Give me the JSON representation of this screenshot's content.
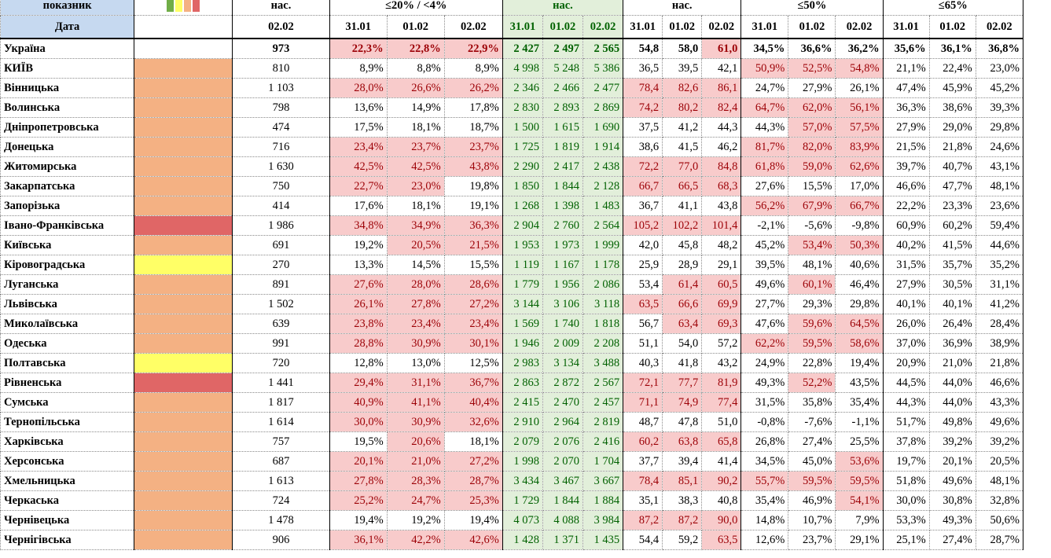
{
  "header": {
    "group_row": [
      "показник",
      "нас.",
      "≤20% / <4%",
      "нас.",
      "нас.",
      "≤50%",
      "≤65%"
    ],
    "date_label": "Дата",
    "population_date": "02.02",
    "dates": [
      "31.01",
      "01.02",
      "02.02",
      "31.01",
      "01.02",
      "02.02",
      "31.01",
      "01.02",
      "02.02",
      "31.01",
      "01.02",
      "02.02",
      "31.01",
      "01.02",
      "02.02"
    ],
    "legend_colors": [
      "#70ad47",
      "#ffff66",
      "#f4b183",
      "#e06666"
    ]
  },
  "rows": [
    {
      "name": "Україна",
      "population": "973",
      "values": [
        "22,3%",
        "22,8%",
        "22,9%",
        "2 427",
        "2 497",
        "2 565",
        "54,8",
        "58,0",
        "61,0",
        "34,5%",
        "36,6%",
        "36,2%",
        "35,6%",
        "36,1%",
        "36,8%"
      ],
      "highlighted": [
        0,
        1,
        2,
        8
      ]
    },
    {
      "name": "КИЇВ",
      "status_color": "#f4b183",
      "population": "810",
      "values": [
        "8,9%",
        "8,8%",
        "8,9%",
        "4 998",
        "5 248",
        "5 386",
        "36,5",
        "39,5",
        "42,1",
        "50,9%",
        "52,5%",
        "54,8%",
        "21,1%",
        "22,4%",
        "23,0%"
      ],
      "highlighted": [
        9,
        10,
        11
      ]
    },
    {
      "name": "Вінницька",
      "status_color": "#f4b183",
      "population": "1 103",
      "values": [
        "28,0%",
        "26,6%",
        "26,2%",
        "2 346",
        "2 466",
        "2 477",
        "78,4",
        "82,6",
        "86,1",
        "24,7%",
        "27,9%",
        "26,1%",
        "47,4%",
        "45,9%",
        "45,2%"
      ],
      "highlighted": [
        0,
        1,
        2,
        6,
        7,
        8
      ]
    },
    {
      "name": "Волинська",
      "status_color": "#f4b183",
      "population": "798",
      "values": [
        "13,6%",
        "14,9%",
        "17,8%",
        "2 830",
        "2 893",
        "2 869",
        "74,2",
        "80,2",
        "82,4",
        "64,7%",
        "62,0%",
        "56,1%",
        "36,3%",
        "38,6%",
        "39,3%"
      ],
      "highlighted": [
        6,
        7,
        8,
        9,
        10,
        11
      ]
    },
    {
      "name": "Дніпропетровська",
      "status_color": "#f4b183",
      "population": "474",
      "values": [
        "17,5%",
        "18,1%",
        "18,7%",
        "1 500",
        "1 615",
        "1 690",
        "37,5",
        "41,2",
        "44,3",
        "44,3%",
        "57,0%",
        "57,5%",
        "27,9%",
        "29,0%",
        "29,8%"
      ],
      "highlighted": [
        10,
        11
      ]
    },
    {
      "name": "Донецька",
      "status_color": "#f4b183",
      "population": "716",
      "values": [
        "23,4%",
        "23,7%",
        "23,7%",
        "1 725",
        "1 819",
        "1 914",
        "38,6",
        "41,5",
        "46,2",
        "81,7%",
        "82,0%",
        "83,9%",
        "21,5%",
        "21,8%",
        "24,6%"
      ],
      "highlighted": [
        0,
        1,
        2,
        9,
        10,
        11
      ]
    },
    {
      "name": "Житомирська",
      "status_color": "#f4b183",
      "population": "1 630",
      "values": [
        "42,5%",
        "42,5%",
        "43,8%",
        "2 290",
        "2 417",
        "2 438",
        "72,2",
        "77,0",
        "84,8",
        "61,8%",
        "59,0%",
        "62,6%",
        "39,7%",
        "40,7%",
        "43,1%"
      ],
      "highlighted": [
        0,
        1,
        2,
        6,
        7,
        8,
        9,
        10,
        11
      ]
    },
    {
      "name": "Закарпатська",
      "status_color": "#f4b183",
      "population": "750",
      "values": [
        "22,7%",
        "23,0%",
        "19,8%",
        "1 850",
        "1 844",
        "2 128",
        "66,7",
        "66,5",
        "68,3",
        "27,6%",
        "15,5%",
        "17,0%",
        "46,6%",
        "47,7%",
        "48,1%"
      ],
      "highlighted": [
        0,
        1,
        6,
        7,
        8
      ]
    },
    {
      "name": "Запорізька",
      "status_color": "#f4b183",
      "population": "414",
      "values": [
        "17,6%",
        "18,1%",
        "19,1%",
        "1 268",
        "1 398",
        "1 483",
        "36,7",
        "41,1",
        "43,8",
        "56,2%",
        "67,9%",
        "66,7%",
        "22,2%",
        "23,3%",
        "23,6%"
      ],
      "highlighted": [
        9,
        10,
        11
      ]
    },
    {
      "name": "Івано-Франківська",
      "status_color": "#e06666",
      "population": "1 986",
      "values": [
        "34,8%",
        "34,9%",
        "36,3%",
        "2 904",
        "2 760",
        "2 564",
        "105,2",
        "102,2",
        "101,4",
        "-2,1%",
        "-5,6%",
        "-9,8%",
        "60,9%",
        "60,2%",
        "59,4%"
      ],
      "highlighted": [
        0,
        1,
        2,
        6,
        7,
        8
      ]
    },
    {
      "name": "Київська",
      "status_color": "#f4b183",
      "population": "691",
      "values": [
        "19,2%",
        "20,5%",
        "21,5%",
        "1 953",
        "1 973",
        "1 999",
        "42,0",
        "45,8",
        "48,2",
        "45,2%",
        "53,4%",
        "50,3%",
        "40,2%",
        "41,5%",
        "44,6%"
      ],
      "highlighted": [
        1,
        2,
        10,
        11
      ]
    },
    {
      "name": "Кіровоградська",
      "status_color": "#ffff66",
      "population": "270",
      "values": [
        "13,3%",
        "14,5%",
        "15,5%",
        "1 119",
        "1 167",
        "1 178",
        "25,9",
        "28,9",
        "29,1",
        "39,5%",
        "48,1%",
        "40,6%",
        "31,5%",
        "35,7%",
        "35,2%"
      ],
      "highlighted": []
    },
    {
      "name": "Луганська",
      "status_color": "#f4b183",
      "population": "891",
      "values": [
        "27,6%",
        "28,0%",
        "28,6%",
        "1 779",
        "1 956",
        "2 086",
        "53,4",
        "61,4",
        "60,5",
        "49,6%",
        "60,1%",
        "46,4%",
        "27,9%",
        "30,5%",
        "31,1%"
      ],
      "highlighted": [
        0,
        1,
        2,
        7,
        8,
        10
      ]
    },
    {
      "name": "Львівська",
      "status_color": "#f4b183",
      "population": "1 502",
      "values": [
        "26,1%",
        "27,8%",
        "27,2%",
        "3 144",
        "3 106",
        "3 118",
        "63,5",
        "66,6",
        "69,9",
        "27,7%",
        "29,3%",
        "29,8%",
        "40,1%",
        "40,1%",
        "41,2%"
      ],
      "highlighted": [
        0,
        1,
        2,
        6,
        7,
        8
      ]
    },
    {
      "name": "Миколаївська",
      "status_color": "#f4b183",
      "population": "639",
      "values": [
        "23,8%",
        "23,4%",
        "23,4%",
        "1 569",
        "1 740",
        "1 818",
        "56,7",
        "63,4",
        "69,3",
        "47,6%",
        "59,6%",
        "64,5%",
        "26,0%",
        "26,4%",
        "28,4%"
      ],
      "highlighted": [
        0,
        1,
        2,
        7,
        8,
        10,
        11
      ]
    },
    {
      "name": "Одеська",
      "status_color": "#f4b183",
      "population": "991",
      "values": [
        "28,8%",
        "30,9%",
        "30,1%",
        "1 946",
        "2 009",
        "2 208",
        "51,1",
        "54,0",
        "57,2",
        "62,2%",
        "59,5%",
        "58,6%",
        "37,0%",
        "36,9%",
        "38,9%"
      ],
      "highlighted": [
        0,
        1,
        2,
        9,
        10,
        11
      ]
    },
    {
      "name": "Полтавська",
      "status_color": "#ffff66",
      "population": "720",
      "values": [
        "12,8%",
        "13,0%",
        "12,5%",
        "2 983",
        "3 134",
        "3 488",
        "40,3",
        "41,8",
        "43,2",
        "24,9%",
        "22,8%",
        "19,4%",
        "20,9%",
        "21,0%",
        "21,8%"
      ],
      "highlighted": []
    },
    {
      "name": "Рівненська",
      "status_color": "#e06666",
      "population": "1 441",
      "values": [
        "29,4%",
        "31,1%",
        "36,7%",
        "2 863",
        "2 872",
        "2 567",
        "72,1",
        "77,7",
        "81,9",
        "49,3%",
        "52,2%",
        "43,5%",
        "44,5%",
        "44,0%",
        "46,6%"
      ],
      "highlighted": [
        0,
        1,
        2,
        6,
        7,
        8,
        10
      ]
    },
    {
      "name": "Сумська",
      "status_color": "#f4b183",
      "population": "1 817",
      "values": [
        "40,9%",
        "41,1%",
        "40,4%",
        "2 415",
        "2 470",
        "2 457",
        "71,1",
        "74,9",
        "77,4",
        "31,5%",
        "35,8%",
        "35,4%",
        "44,3%",
        "44,0%",
        "43,3%"
      ],
      "highlighted": [
        0,
        1,
        2,
        6,
        7,
        8
      ]
    },
    {
      "name": "Тернопільська",
      "status_color": "#f4b183",
      "population": "1 614",
      "values": [
        "30,0%",
        "30,9%",
        "32,6%",
        "2 910",
        "2 964",
        "2 819",
        "48,7",
        "47,8",
        "51,0",
        "-0,8%",
        "-7,6%",
        "-1,1%",
        "51,7%",
        "49,8%",
        "49,6%"
      ],
      "highlighted": [
        0,
        1,
        2
      ]
    },
    {
      "name": "Харківська",
      "status_color": "#f4b183",
      "population": "757",
      "values": [
        "19,5%",
        "20,6%",
        "18,1%",
        "2 079",
        "2 076",
        "2 416",
        "60,2",
        "63,8",
        "65,8",
        "26,8%",
        "27,4%",
        "25,5%",
        "37,8%",
        "39,2%",
        "39,2%"
      ],
      "highlighted": [
        1,
        6,
        7,
        8
      ]
    },
    {
      "name": "Херсонська",
      "status_color": "#f4b183",
      "population": "687",
      "values": [
        "20,1%",
        "21,0%",
        "27,2%",
        "1 998",
        "2 070",
        "1 704",
        "37,7",
        "39,4",
        "41,4",
        "34,5%",
        "45,0%",
        "53,6%",
        "19,7%",
        "20,1%",
        "20,5%"
      ],
      "highlighted": [
        0,
        1,
        2,
        11
      ]
    },
    {
      "name": "Хмельницька",
      "status_color": "#f4b183",
      "population": "1 613",
      "values": [
        "27,8%",
        "28,3%",
        "28,7%",
        "3 434",
        "3 467",
        "3 667",
        "78,4",
        "85,1",
        "90,2",
        "55,7%",
        "59,5%",
        "59,5%",
        "51,8%",
        "49,6%",
        "48,1%"
      ],
      "highlighted": [
        0,
        1,
        2,
        6,
        7,
        8,
        9,
        10,
        11
      ]
    },
    {
      "name": "Черкаська",
      "status_color": "#f4b183",
      "population": "724",
      "values": [
        "25,2%",
        "24,7%",
        "25,3%",
        "1 729",
        "1 844",
        "1 884",
        "35,1",
        "38,3",
        "40,8",
        "35,4%",
        "46,9%",
        "54,1%",
        "30,0%",
        "30,8%",
        "32,8%"
      ],
      "highlighted": [
        0,
        1,
        2,
        11
      ]
    },
    {
      "name": "Чернівецька",
      "status_color": "#f4b183",
      "population": "1 478",
      "values": [
        "19,4%",
        "19,2%",
        "19,4%",
        "4 073",
        "4 088",
        "3 984",
        "87,2",
        "87,2",
        "90,0",
        "14,8%",
        "10,7%",
        "7,9%",
        "53,3%",
        "49,3%",
        "50,6%"
      ],
      "highlighted": [
        6,
        7,
        8
      ]
    },
    {
      "name": "Чернігівська",
      "status_color": "#f4b183",
      "population": "906",
      "values": [
        "36,1%",
        "42,2%",
        "42,6%",
        "1 428",
        "1 371",
        "1 435",
        "54,4",
        "59,2",
        "63,5",
        "12,6%",
        "23,7%",
        "29,1%",
        "25,1%",
        "27,4%",
        "28,7%"
      ],
      "highlighted": [
        0,
        1,
        2,
        8
      ]
    }
  ]
}
